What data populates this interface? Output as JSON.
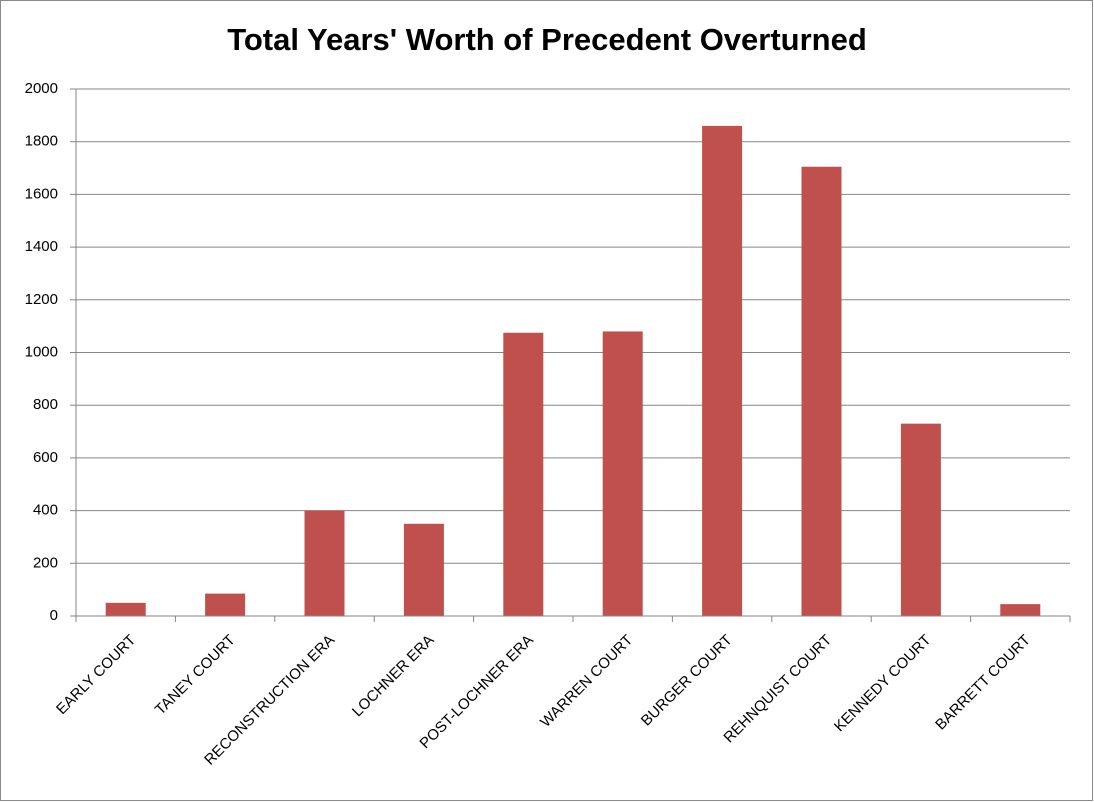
{
  "chart_data": {
    "type": "bar",
    "title": "Total Years' Worth of Precedent Overturned",
    "categories": [
      "EARLY COURT",
      "TANEY COURT",
      "RECONSTRUCTION ERA",
      "LOCHNER ERA",
      "POST-LOCHNER ERA",
      "WARREN COURT",
      "BURGER COURT",
      "REHNQUIST COURT",
      "KENNEDY COURT",
      "BARRETT COURT"
    ],
    "values": [
      50,
      85,
      400,
      350,
      1075,
      1080,
      1860,
      1705,
      730,
      45
    ],
    "color": "#c0504d",
    "ylim": [
      0,
      2000
    ],
    "yticks": [
      0,
      200,
      400,
      600,
      800,
      1000,
      1200,
      1400,
      1600,
      1800,
      2000
    ],
    "grid": true
  }
}
